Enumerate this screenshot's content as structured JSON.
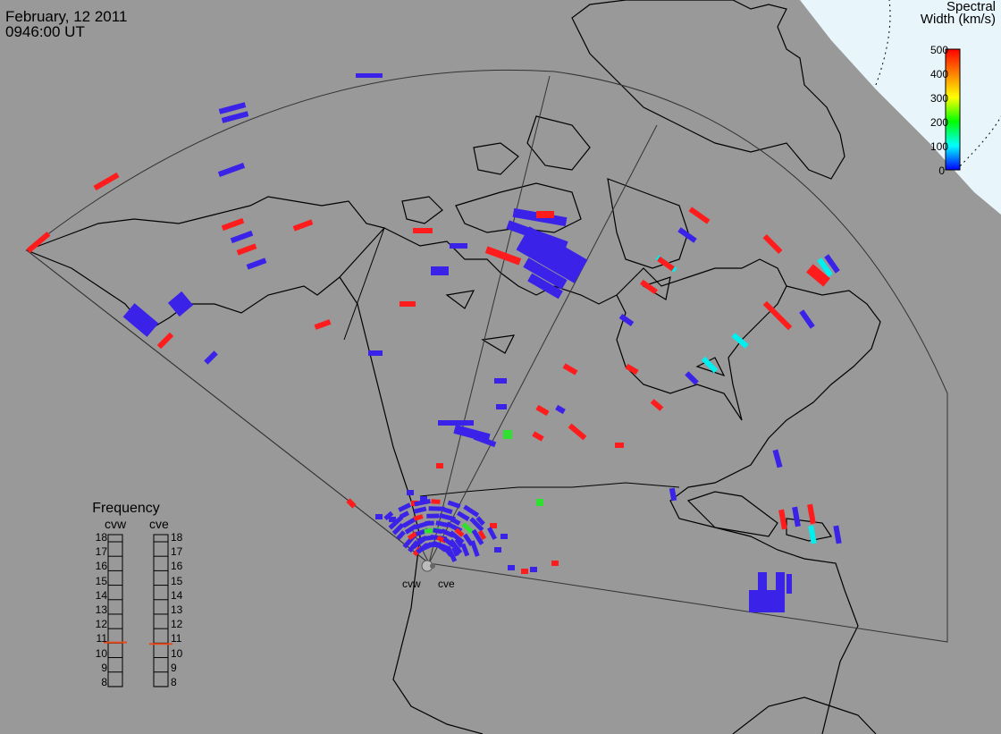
{
  "header": {
    "date": "February, 12 2011",
    "time": "0946:00 UT"
  },
  "colorbar": {
    "title_line1": "Spectral",
    "title_line2": "Width (km/s)",
    "ticks": [
      "500",
      "400",
      "300",
      "200",
      "100",
      "0"
    ],
    "range": [
      0,
      500
    ],
    "colors": [
      "#ff0000",
      "#ff8000",
      "#ffff00",
      "#00ff00",
      "#00ffff",
      "#0000ff"
    ]
  },
  "frequency": {
    "title": "Frequency",
    "radars": [
      {
        "name": "cvw",
        "value_mhz": 10.8
      },
      {
        "name": "cve",
        "value_mhz": 10.7
      }
    ],
    "scale": [
      "18",
      "17",
      "16",
      "15",
      "14",
      "13",
      "12",
      "11",
      "10",
      "9",
      "8"
    ],
    "marker_color": "#e84a1c"
  },
  "sites": {
    "west": "cvw",
    "east": "cve"
  },
  "colors": {
    "background": "#999999",
    "ocean_fill": "#e8f6fc",
    "scatter_blue": "#3a22e8",
    "scatter_red": "#ff1c1c",
    "scatter_cyan": "#00f0f0",
    "scatter_green": "#30e030"
  }
}
